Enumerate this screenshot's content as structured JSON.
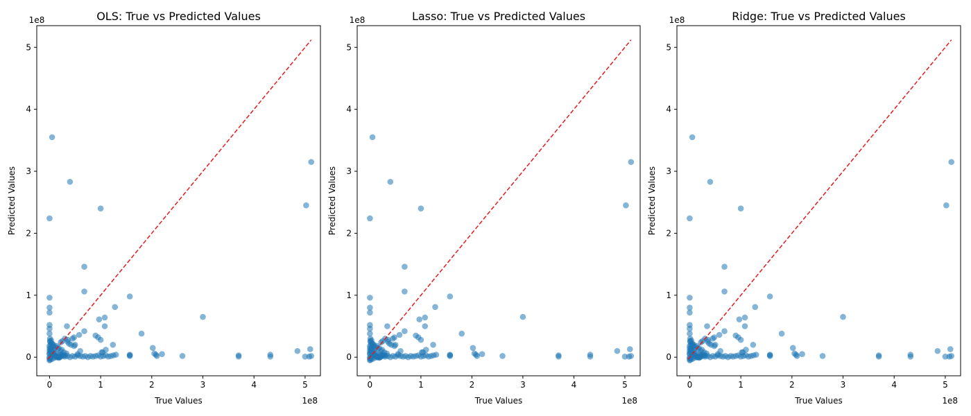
{
  "chart_data": [
    {
      "type": "scatter",
      "title": "OLS: True vs Predicted Values",
      "xlabel": "True Values",
      "ylabel": "Predicted Values",
      "x_offset_label": "1e8",
      "y_offset_label": "1e8",
      "xlim": [
        -0.25,
        5.3
      ],
      "ylim": [
        -0.3,
        5.35
      ],
      "xticks": [
        0,
        1,
        2,
        3,
        4,
        5
      ],
      "yticks": [
        0,
        1,
        2,
        3,
        4,
        5
      ],
      "point_color": "#1f77b4",
      "point_alpha": 0.55,
      "reference_line": {
        "x": [
          -0.03,
          5.12
        ],
        "y": [
          -0.03,
          5.12
        ],
        "color": "#e41a1c",
        "style": "dashed"
      },
      "points": {
        "x": [
          0.05,
          0.4,
          0,
          1.0,
          5.12,
          5.02,
          0,
          0,
          0,
          0.68,
          0.68,
          1.57,
          1.08,
          1.28,
          0.97,
          1.08,
          0,
          0,
          0,
          0.68,
          0.34,
          0.58,
          0.48,
          1.8,
          3.0,
          2.02,
          1.24,
          1.1,
          1.04,
          2.6,
          2.2,
          4.85,
          5.1,
          0,
          0.1,
          0.15,
          0.2,
          0.25,
          0.3,
          0.35,
          0.4,
          0.45,
          0.5,
          0.55,
          0.6,
          0.65,
          0.7,
          0.75,
          0.8,
          0.85,
          0.9,
          0.95,
          1.0,
          1.05,
          1.1,
          1.15,
          1.2,
          1.25,
          1.3,
          1.57,
          1.57,
          1.57,
          2.05,
          2.08,
          2.1,
          3.7,
          3.7,
          4.32,
          4.32,
          5.0,
          5.08,
          5.12,
          0.02,
          0.03,
          0.05,
          0.08,
          0.12,
          0.18,
          0.22,
          0.28,
          0.02,
          0.05,
          0.1,
          0.15,
          0.2,
          0.25,
          0.3,
          0.02,
          0.06,
          0.12,
          0.16,
          0.22,
          0.28,
          0.33,
          0.01,
          0.04,
          0.08,
          0.14,
          0.18,
          0.24,
          0.01,
          0.03,
          0.05,
          0.07,
          0.09,
          0.02,
          0.04,
          0.06,
          0.08,
          0.1,
          0.12,
          0.14,
          0.16,
          0.18,
          0.2,
          0.0,
          0.0,
          0.0,
          0.0,
          0.0,
          0.0,
          0.0,
          0.01,
          0.01,
          0.02,
          0.45,
          0.5,
          0.55,
          0.6,
          0.3,
          0.35,
          0.42,
          0.48,
          0.25,
          0.22,
          0.9,
          0.95,
          1.0,
          1.02,
          0.38,
          0.36
        ],
        "y": [
          3.55,
          2.83,
          2.24,
          2.4,
          3.15,
          2.45,
          0.96,
          0.8,
          0.72,
          1.46,
          1.06,
          0.98,
          0.5,
          0.81,
          0.61,
          0.64,
          0.52,
          0.46,
          0.38,
          0.42,
          0.5,
          0.36,
          0.32,
          0.38,
          0.65,
          0.15,
          0.2,
          0.12,
          0.08,
          0.02,
          0.05,
          0.1,
          0.13,
          0.0,
          0.02,
          0.01,
          0.0,
          0.03,
          0.01,
          0.02,
          0.0,
          0.02,
          0.01,
          0.03,
          0.02,
          0.01,
          0.02,
          0.0,
          0.02,
          0.01,
          0.02,
          0.03,
          0.01,
          0.02,
          0.03,
          0.01,
          0.02,
          0.03,
          0.04,
          0.04,
          0.02,
          0.03,
          0.06,
          0.04,
          0.02,
          0.03,
          0.01,
          0.04,
          0.01,
          0.01,
          0.01,
          0.02,
          0.15,
          0.12,
          0.1,
          0.08,
          0.06,
          0.05,
          0.04,
          0.03,
          -0.02,
          -0.03,
          -0.01,
          0.0,
          0.01,
          0.02,
          0.03,
          0.2,
          0.18,
          0.16,
          0.14,
          0.1,
          0.08,
          0.06,
          0.25,
          0.22,
          0.2,
          0.18,
          0.15,
          0.12,
          0.3,
          0.27,
          0.22,
          0.18,
          0.12,
          0.08,
          0.06,
          0.05,
          0.04,
          0.03,
          0.02,
          0.01,
          0.0,
          -0.01,
          0.0,
          0.05,
          0.1,
          -0.02,
          -0.05,
          0.14,
          0.18,
          0.06,
          0.26,
          -0.04,
          0.12,
          0.3,
          0.2,
          0.05,
          0.1,
          0.3,
          0.25,
          0.2,
          0.18,
          0.26,
          0.24,
          0.35,
          0.32,
          0.28,
          0.08,
          0.22,
          0.28
        ]
      },
      "x_tick_labels": [
        "0",
        "1",
        "2",
        "3",
        "4",
        "5"
      ],
      "y_tick_labels": [
        "0",
        "1",
        "2",
        "3",
        "4",
        "5"
      ]
    },
    {
      "type": "scatter",
      "title": "Lasso: True vs Predicted Values",
      "xlabel": "True Values",
      "ylabel": "Predicted Values",
      "x_offset_label": "1e8",
      "y_offset_label": "1e8",
      "xlim": [
        -0.25,
        5.3
      ],
      "ylim": [
        -0.3,
        5.35
      ],
      "xticks": [
        0,
        1,
        2,
        3,
        4,
        5
      ],
      "yticks": [
        0,
        1,
        2,
        3,
        4,
        5
      ],
      "point_color": "#1f77b4",
      "point_alpha": 0.55,
      "reference_line": {
        "x": [
          -0.03,
          5.12
        ],
        "y": [
          -0.03,
          5.12
        ],
        "color": "#e41a1c",
        "style": "dashed"
      },
      "points": {
        "x": [
          0.05,
          0.4,
          0,
          1.0,
          5.12,
          5.02,
          0,
          0,
          0,
          0.68,
          0.68,
          1.57,
          1.08,
          1.28,
          0.97,
          1.08,
          0,
          0,
          0,
          0.68,
          0.34,
          0.58,
          0.48,
          1.8,
          3.0,
          2.02,
          1.24,
          1.1,
          1.04,
          2.6,
          2.2,
          4.85,
          5.1,
          0,
          0.1,
          0.15,
          0.2,
          0.25,
          0.3,
          0.35,
          0.4,
          0.45,
          0.5,
          0.55,
          0.6,
          0.65,
          0.7,
          0.75,
          0.8,
          0.85,
          0.9,
          0.95,
          1.0,
          1.05,
          1.1,
          1.15,
          1.2,
          1.25,
          1.3,
          1.57,
          1.57,
          1.57,
          2.05,
          2.08,
          2.1,
          3.7,
          3.7,
          4.32,
          4.32,
          5.0,
          5.08,
          5.12,
          0.02,
          0.03,
          0.05,
          0.08,
          0.12,
          0.18,
          0.22,
          0.28,
          0.02,
          0.05,
          0.1,
          0.15,
          0.2,
          0.25,
          0.3,
          0.02,
          0.06,
          0.12,
          0.16,
          0.22,
          0.28,
          0.33,
          0.01,
          0.04,
          0.08,
          0.14,
          0.18,
          0.24,
          0.01,
          0.03,
          0.05,
          0.07,
          0.09,
          0.02,
          0.04,
          0.06,
          0.08,
          0.1,
          0.12,
          0.14,
          0.16,
          0.18,
          0.2,
          0.0,
          0.0,
          0.0,
          0.0,
          0.0,
          0.0,
          0.0,
          0.01,
          0.01,
          0.02,
          0.45,
          0.5,
          0.55,
          0.6,
          0.3,
          0.35,
          0.42,
          0.48,
          0.25,
          0.22,
          0.9,
          0.95,
          1.0,
          1.02,
          0.38,
          0.36
        ],
        "y": [
          3.55,
          2.83,
          2.24,
          2.4,
          3.15,
          2.45,
          0.96,
          0.8,
          0.72,
          1.46,
          1.06,
          0.98,
          0.5,
          0.81,
          0.61,
          0.64,
          0.52,
          0.46,
          0.38,
          0.42,
          0.5,
          0.36,
          0.32,
          0.38,
          0.65,
          0.15,
          0.2,
          0.12,
          0.08,
          0.02,
          0.05,
          0.1,
          0.13,
          0.0,
          0.02,
          0.01,
          0.0,
          0.03,
          0.01,
          0.02,
          0.0,
          0.02,
          0.01,
          0.03,
          0.02,
          0.01,
          0.02,
          0.0,
          0.02,
          0.01,
          0.02,
          0.03,
          0.01,
          0.02,
          0.03,
          0.01,
          0.02,
          0.03,
          0.04,
          0.04,
          0.02,
          0.03,
          0.06,
          0.04,
          0.02,
          0.03,
          0.01,
          0.04,
          0.01,
          0.01,
          0.01,
          0.02,
          0.15,
          0.12,
          0.1,
          0.08,
          0.06,
          0.05,
          0.04,
          0.03,
          -0.02,
          -0.03,
          -0.01,
          0.0,
          0.01,
          0.02,
          0.03,
          0.2,
          0.18,
          0.16,
          0.14,
          0.1,
          0.08,
          0.06,
          0.25,
          0.22,
          0.2,
          0.18,
          0.15,
          0.12,
          0.3,
          0.27,
          0.22,
          0.18,
          0.12,
          0.08,
          0.06,
          0.05,
          0.04,
          0.03,
          0.02,
          0.01,
          0.0,
          -0.01,
          0.0,
          0.05,
          0.1,
          -0.02,
          -0.05,
          0.14,
          0.18,
          0.06,
          0.26,
          -0.04,
          0.12,
          0.3,
          0.2,
          0.05,
          0.1,
          0.3,
          0.25,
          0.2,
          0.18,
          0.26,
          0.24,
          0.35,
          0.32,
          0.28,
          0.08,
          0.22,
          0.28
        ]
      },
      "x_tick_labels": [
        "0",
        "1",
        "2",
        "3",
        "4",
        "5"
      ],
      "y_tick_labels": [
        "0",
        "1",
        "2",
        "3",
        "4",
        "5"
      ]
    },
    {
      "type": "scatter",
      "title": "Ridge: True vs Predicted Values",
      "xlabel": "True Values",
      "ylabel": "Predicted Values",
      "x_offset_label": "1e8",
      "y_offset_label": "1e8",
      "xlim": [
        -0.25,
        5.3
      ],
      "ylim": [
        -0.3,
        5.35
      ],
      "xticks": [
        0,
        1,
        2,
        3,
        4,
        5
      ],
      "yticks": [
        0,
        1,
        2,
        3,
        4,
        5
      ],
      "point_color": "#1f77b4",
      "point_alpha": 0.55,
      "reference_line": {
        "x": [
          -0.03,
          5.12
        ],
        "y": [
          -0.03,
          5.12
        ],
        "color": "#e41a1c",
        "style": "dashed"
      },
      "points": {
        "x": [
          0.05,
          0.4,
          0,
          1.0,
          5.12,
          5.02,
          0,
          0,
          0,
          0.68,
          0.68,
          1.57,
          1.08,
          1.28,
          0.97,
          1.08,
          0,
          0,
          0,
          0.68,
          0.34,
          0.58,
          0.48,
          1.8,
          3.0,
          2.02,
          1.24,
          1.1,
          1.04,
          2.6,
          2.2,
          4.85,
          5.1,
          0,
          0.1,
          0.15,
          0.2,
          0.25,
          0.3,
          0.35,
          0.4,
          0.45,
          0.5,
          0.55,
          0.6,
          0.65,
          0.7,
          0.75,
          0.8,
          0.85,
          0.9,
          0.95,
          1.0,
          1.05,
          1.1,
          1.15,
          1.2,
          1.25,
          1.3,
          1.57,
          1.57,
          1.57,
          2.05,
          2.08,
          2.1,
          3.7,
          3.7,
          4.32,
          4.32,
          5.0,
          5.08,
          5.12,
          0.02,
          0.03,
          0.05,
          0.08,
          0.12,
          0.18,
          0.22,
          0.28,
          0.02,
          0.05,
          0.1,
          0.15,
          0.2,
          0.25,
          0.3,
          0.02,
          0.06,
          0.12,
          0.16,
          0.22,
          0.28,
          0.33,
          0.01,
          0.04,
          0.08,
          0.14,
          0.18,
          0.24,
          0.01,
          0.03,
          0.05,
          0.07,
          0.09,
          0.02,
          0.04,
          0.06,
          0.08,
          0.1,
          0.12,
          0.14,
          0.16,
          0.18,
          0.2,
          0.0,
          0.0,
          0.0,
          0.0,
          0.0,
          0.0,
          0.0,
          0.01,
          0.01,
          0.02,
          0.45,
          0.5,
          0.55,
          0.6,
          0.3,
          0.35,
          0.42,
          0.48,
          0.25,
          0.22,
          0.9,
          0.95,
          1.0,
          1.02,
          0.38,
          0.36
        ],
        "y": [
          3.55,
          2.83,
          2.24,
          2.4,
          3.15,
          2.45,
          0.96,
          0.8,
          0.72,
          1.46,
          1.06,
          0.98,
          0.5,
          0.81,
          0.61,
          0.64,
          0.52,
          0.46,
          0.38,
          0.42,
          0.5,
          0.36,
          0.32,
          0.38,
          0.65,
          0.15,
          0.2,
          0.12,
          0.08,
          0.02,
          0.05,
          0.1,
          0.13,
          0.0,
          0.02,
          0.01,
          0.0,
          0.03,
          0.01,
          0.02,
          0.0,
          0.02,
          0.01,
          0.03,
          0.02,
          0.01,
          0.02,
          0.0,
          0.02,
          0.01,
          0.02,
          0.03,
          0.01,
          0.02,
          0.03,
          0.01,
          0.02,
          0.03,
          0.04,
          0.04,
          0.02,
          0.03,
          0.06,
          0.04,
          0.02,
          0.03,
          0.01,
          0.04,
          0.01,
          0.01,
          0.01,
          0.02,
          0.15,
          0.12,
          0.1,
          0.08,
          0.06,
          0.05,
          0.04,
          0.03,
          -0.02,
          -0.03,
          -0.01,
          0.0,
          0.01,
          0.02,
          0.03,
          0.2,
          0.18,
          0.16,
          0.14,
          0.1,
          0.08,
          0.06,
          0.25,
          0.22,
          0.2,
          0.18,
          0.15,
          0.12,
          0.3,
          0.27,
          0.22,
          0.18,
          0.12,
          0.08,
          0.06,
          0.05,
          0.04,
          0.03,
          0.02,
          0.01,
          0.0,
          -0.01,
          0.0,
          0.05,
          0.1,
          -0.02,
          -0.05,
          0.14,
          0.18,
          0.06,
          0.26,
          -0.04,
          0.12,
          0.3,
          0.2,
          0.05,
          0.1,
          0.3,
          0.25,
          0.2,
          0.18,
          0.26,
          0.24,
          0.35,
          0.32,
          0.28,
          0.08,
          0.22,
          0.28
        ]
      },
      "x_tick_labels": [
        "0",
        "1",
        "2",
        "3",
        "4",
        "5"
      ],
      "y_tick_labels": [
        "0",
        "1",
        "2",
        "3",
        "4",
        "5"
      ]
    }
  ]
}
